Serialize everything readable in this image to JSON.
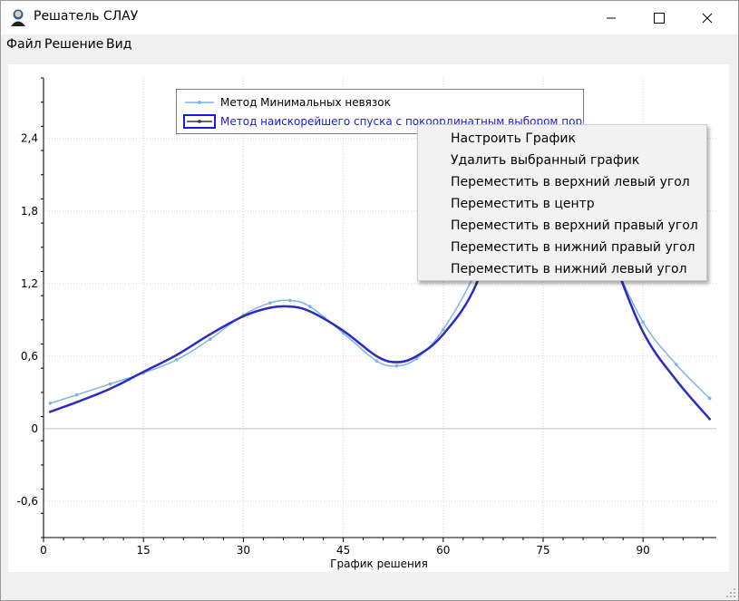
{
  "window": {
    "title": "Решатель СЛАУ",
    "icon": "user-avatar-icon"
  },
  "menu": {
    "file": "Файл",
    "solve": "Решение",
    "view": "Вид"
  },
  "context_menu": {
    "items": [
      "Настроить График",
      "Удалить выбранный график",
      "Переместить в верхний левый угол",
      "Переместить в центр",
      "Переместить в верхний правый угол",
      "Переместить в нижний правый угол",
      "Переместить в нижний левый угол"
    ]
  },
  "chart_data": {
    "type": "line",
    "xlabel": "График решения",
    "ylabel": "",
    "xlim": [
      0,
      101
    ],
    "ylim": [
      -0.9,
      2.9
    ],
    "x_ticks": [
      0,
      15,
      30,
      45,
      60,
      75,
      90
    ],
    "x_tick_labels": [
      "0",
      "15",
      "30",
      "45",
      "60",
      "75",
      "90"
    ],
    "y_ticks": [
      -0.6,
      0,
      0.6,
      1.2,
      1.8,
      2.4
    ],
    "y_tick_labels": [
      "-0,6",
      "0",
      "0,6",
      "1,2",
      "1,8",
      "2,4"
    ],
    "grid": true,
    "legend_position": "top-center",
    "series": [
      {
        "name": "Метод Минимальных невязок",
        "color": "#7cb4e8",
        "x": [
          1,
          5,
          10,
          15,
          20,
          25,
          30,
          34,
          37,
          40,
          45,
          50,
          53,
          56,
          60,
          65,
          70,
          75,
          80,
          85,
          90,
          95,
          100
        ],
        "values": [
          0.21,
          0.28,
          0.37,
          0.46,
          0.57,
          0.74,
          0.94,
          1.04,
          1.06,
          1.01,
          0.79,
          0.56,
          0.52,
          0.58,
          0.82,
          1.32,
          2.1,
          2.4,
          2.05,
          1.45,
          0.88,
          0.53,
          0.25
        ]
      },
      {
        "name": "Метод наискорейшего спуска с покоординатным выбором порядка",
        "color": "#2a2acc",
        "x": [
          1,
          5,
          10,
          15,
          20,
          25,
          30,
          34,
          37,
          40,
          45,
          50,
          53,
          56,
          60,
          65,
          70,
          75,
          80,
          85,
          90,
          95,
          100
        ],
        "values": [
          0.14,
          0.22,
          0.33,
          0.47,
          0.61,
          0.78,
          0.93,
          1.0,
          1.01,
          0.97,
          0.81,
          0.6,
          0.55,
          0.6,
          0.78,
          1.2,
          2.05,
          2.45,
          2.2,
          1.48,
          0.8,
          0.4,
          0.08
        ]
      }
    ]
  }
}
